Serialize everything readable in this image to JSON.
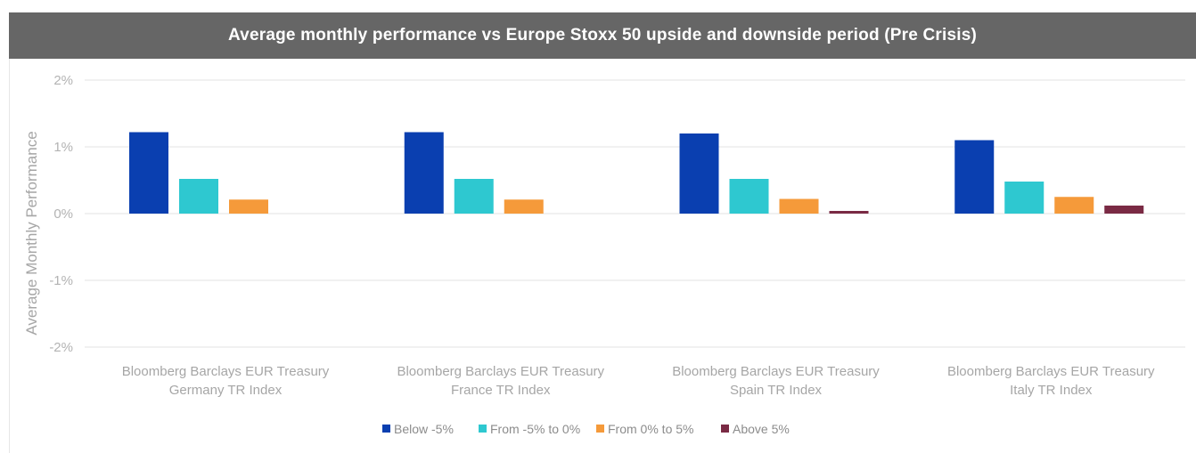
{
  "chart_data": {
    "type": "bar",
    "title": "Average monthly performance vs Europe Stoxx 50 upside and downside period (Pre Crisis)",
    "ylabel": "Average Monthly Performance",
    "xlabel": "",
    "ylim": [
      -2,
      2
    ],
    "yticks": [
      2,
      1,
      0,
      -1,
      -2
    ],
    "ytick_labels": [
      "2%",
      "1%",
      "0%",
      "-1%",
      "-2%"
    ],
    "grid": true,
    "legend_position": "bottom",
    "categories": [
      [
        "Bloomberg Barclays EUR Treasury",
        "Germany TR Index"
      ],
      [
        "Bloomberg Barclays EUR Treasury",
        "France TR Index"
      ],
      [
        "Bloomberg Barclays EUR Treasury",
        "Spain TR Index"
      ],
      [
        "Bloomberg Barclays EUR Treasury",
        "Italy TR Index"
      ]
    ],
    "series": [
      {
        "name": "Below -5%",
        "color": "#0a3fb0",
        "values": [
          1.22,
          1.22,
          1.2,
          1.1
        ]
      },
      {
        "name": "From -5% to 0%",
        "color": "#2ec8d0",
        "values": [
          0.52,
          0.52,
          0.52,
          0.48
        ]
      },
      {
        "name": "From 0% to 5%",
        "color": "#f59a3a",
        "values": [
          0.21,
          0.21,
          0.22,
          0.25
        ]
      },
      {
        "name": "Above 5%",
        "color": "#7a2a44",
        "values": [
          0,
          0,
          0.04,
          0.12
        ]
      }
    ]
  }
}
